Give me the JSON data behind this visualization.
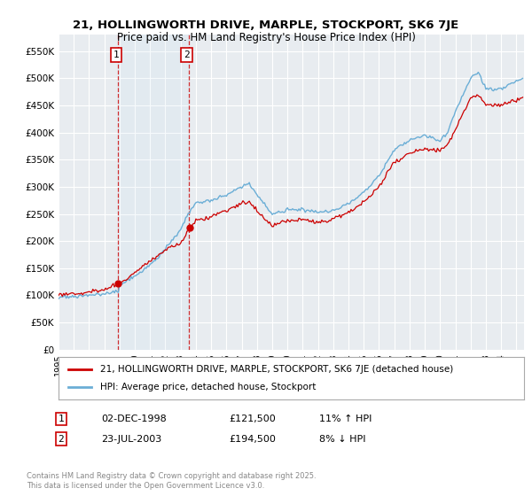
{
  "title": "21, HOLLINGWORTH DRIVE, MARPLE, STOCKPORT, SK6 7JE",
  "subtitle": "Price paid vs. HM Land Registry's House Price Index (HPI)",
  "ylabel_ticks": [
    "£0",
    "£50K",
    "£100K",
    "£150K",
    "£200K",
    "£250K",
    "£300K",
    "£350K",
    "£400K",
    "£450K",
    "£500K",
    "£550K"
  ],
  "ytick_values": [
    0,
    50000,
    100000,
    150000,
    200000,
    250000,
    300000,
    350000,
    400000,
    450000,
    500000,
    550000
  ],
  "background_color": "#ffffff",
  "plot_bg_color": "#e8ecf0",
  "grid_color": "#ffffff",
  "hpi_line_color": "#6baed6",
  "price_line_color": "#cc0000",
  "t1_date": "02-DEC-1998",
  "t1_price": "£121,500",
  "t1_hpi": "11% ↑ HPI",
  "t2_date": "23-JUL-2003",
  "t2_price": "£194,500",
  "t2_hpi": "8% ↓ HPI",
  "legend_house_label": "21, HOLLINGWORTH DRIVE, MARPLE, STOCKPORT, SK6 7JE (detached house)",
  "legend_hpi_label": "HPI: Average price, detached house, Stockport",
  "footnote": "Contains HM Land Registry data © Crown copyright and database right 2025.\nThis data is licensed under the Open Government Licence v3.0.",
  "xlim_start": 1995.0,
  "xlim_end": 2025.5,
  "ylim_top": 580000,
  "ylim_bottom": 0,
  "hpi_keypoints_x": [
    1995,
    1996,
    1997,
    1998,
    1998.92,
    1999,
    2000,
    2001,
    2002,
    2003,
    2003.5,
    2004,
    2005,
    2006,
    2007,
    2007.5,
    2008,
    2009,
    2010,
    2011,
    2012,
    2013,
    2014,
    2015,
    2016,
    2016.5,
    2017,
    2018,
    2019,
    2020,
    2020.5,
    2021,
    2022,
    2022.5,
    2023,
    2024,
    2025.3
  ],
  "hpi_keypoints_y": [
    96000,
    98000,
    100000,
    104000,
    108000,
    118000,
    135000,
    155000,
    185000,
    220000,
    250000,
    270000,
    275000,
    285000,
    300000,
    305000,
    285000,
    250000,
    258000,
    258000,
    252000,
    256000,
    270000,
    290000,
    320000,
    345000,
    368000,
    385000,
    395000,
    385000,
    400000,
    440000,
    500000,
    510000,
    480000,
    480000,
    500000
  ],
  "red_keypoints_x": [
    1995,
    1996,
    1997,
    1998,
    1998.92,
    1999.5,
    2000,
    2001,
    2002,
    2003,
    2003.5,
    2004,
    2005,
    2006,
    2007,
    2007.5,
    2008,
    2009,
    2010,
    2011,
    2012,
    2013,
    2014,
    2015,
    2016,
    2016.5,
    2017,
    2018,
    2019,
    2020,
    2020.5,
    2021,
    2022,
    2022.5,
    2023,
    2024,
    2025.3
  ],
  "red_keypoints_y": [
    100000,
    103000,
    106000,
    110000,
    121500,
    130000,
    142000,
    162000,
    185000,
    194500,
    220000,
    238000,
    245000,
    255000,
    270000,
    273000,
    255000,
    228000,
    238000,
    240000,
    234000,
    240000,
    253000,
    272000,
    300000,
    323000,
    345000,
    362000,
    370000,
    365000,
    378000,
    405000,
    463000,
    470000,
    450000,
    450000,
    463000
  ],
  "t1_x": 1998.917,
  "t2_x": 2003.542
}
